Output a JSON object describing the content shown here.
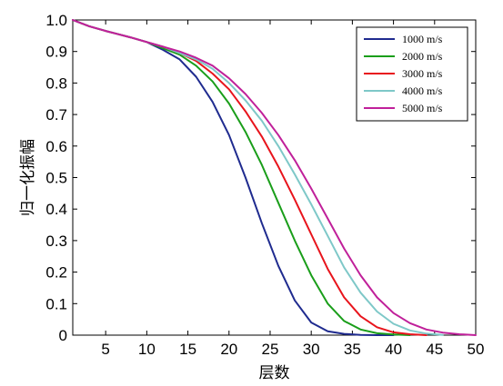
{
  "chart_data": {
    "type": "line",
    "title": "",
    "xlabel": "层数",
    "ylabel": "归一化振幅",
    "xlim": [
      1,
      50
    ],
    "ylim": [
      0,
      1.0
    ],
    "x_ticks": [
      5,
      10,
      15,
      20,
      25,
      30,
      35,
      40,
      45,
      50
    ],
    "y_ticks": [
      0,
      0.1,
      0.2,
      0.3,
      0.4,
      0.5,
      0.6,
      0.7,
      0.8,
      0.9,
      1.0
    ],
    "y_tick_labels": [
      "0",
      "0.1",
      "0.2",
      "0.3",
      "0.4",
      "0.5",
      "0.6",
      "0.7",
      "0.8",
      "0.9",
      "1.0"
    ],
    "grid": false,
    "legend_position": "top-right",
    "series": [
      {
        "name": "1000 m/s",
        "color": "#1f2b8f",
        "x": [
          1,
          3,
          5,
          8,
          10,
          12,
          14,
          16,
          18,
          20,
          22,
          24,
          26,
          28,
          30,
          32,
          34,
          36,
          38,
          40
        ],
        "y": [
          1.0,
          0.98,
          0.965,
          0.945,
          0.93,
          0.905,
          0.875,
          0.82,
          0.74,
          0.635,
          0.5,
          0.355,
          0.22,
          0.11,
          0.04,
          0.012,
          0.004,
          0.001,
          0.0,
          0.0
        ]
      },
      {
        "name": "2000 m/s",
        "color": "#1a9e1a",
        "x": [
          1,
          3,
          5,
          8,
          10,
          12,
          14,
          16,
          18,
          20,
          22,
          24,
          26,
          28,
          30,
          32,
          34,
          36,
          38,
          40,
          42
        ],
        "y": [
          1.0,
          0.98,
          0.965,
          0.945,
          0.93,
          0.91,
          0.89,
          0.855,
          0.805,
          0.735,
          0.645,
          0.54,
          0.42,
          0.3,
          0.19,
          0.1,
          0.045,
          0.018,
          0.006,
          0.002,
          0.0
        ]
      },
      {
        "name": "3000 m/s",
        "color": "#e8141c",
        "x": [
          1,
          3,
          5,
          8,
          10,
          12,
          14,
          16,
          18,
          20,
          22,
          24,
          26,
          28,
          30,
          32,
          34,
          36,
          38,
          40,
          42,
          44
        ],
        "y": [
          1.0,
          0.98,
          0.965,
          0.945,
          0.93,
          0.915,
          0.895,
          0.87,
          0.83,
          0.78,
          0.71,
          0.63,
          0.535,
          0.43,
          0.32,
          0.21,
          0.12,
          0.06,
          0.025,
          0.009,
          0.003,
          0.0
        ]
      },
      {
        "name": "4000 m/s",
        "color": "#7ec8c8",
        "x": [
          1,
          3,
          5,
          8,
          10,
          12,
          14,
          16,
          18,
          20,
          22,
          24,
          26,
          28,
          30,
          32,
          34,
          36,
          38,
          40,
          42,
          44,
          46
        ],
        "y": [
          1.0,
          0.98,
          0.965,
          0.945,
          0.93,
          0.915,
          0.895,
          0.875,
          0.845,
          0.8,
          0.745,
          0.68,
          0.6,
          0.51,
          0.415,
          0.315,
          0.215,
          0.135,
          0.075,
          0.036,
          0.015,
          0.005,
          0.001
        ]
      },
      {
        "name": "5000 m/s",
        "color": "#c0209a",
        "x": [
          1,
          3,
          5,
          8,
          10,
          12,
          14,
          16,
          18,
          20,
          22,
          24,
          26,
          28,
          30,
          32,
          34,
          36,
          38,
          40,
          42,
          44,
          46,
          48,
          50
        ],
        "y": [
          1.0,
          0.98,
          0.965,
          0.945,
          0.93,
          0.915,
          0.9,
          0.88,
          0.855,
          0.815,
          0.765,
          0.705,
          0.635,
          0.555,
          0.465,
          0.37,
          0.275,
          0.19,
          0.12,
          0.07,
          0.038,
          0.018,
          0.008,
          0.003,
          0.0
        ]
      }
    ]
  }
}
